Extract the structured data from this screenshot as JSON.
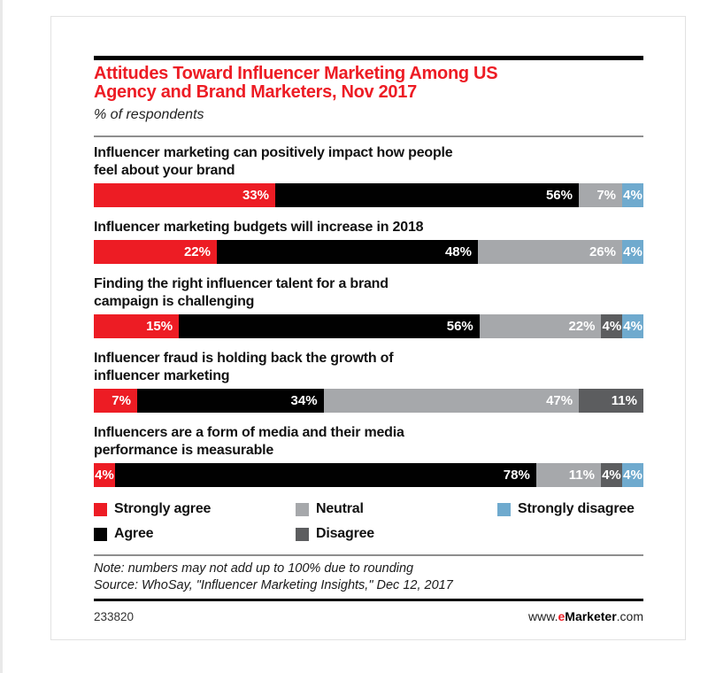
{
  "chart_data": {
    "type": "bar",
    "orientation": "horizontal-stacked",
    "title": "Attitudes Toward Influencer Marketing Among US Agency and Brand Marketers, Nov 2017",
    "title_lines": [
      "Attitudes Toward Influencer Marketing Among US",
      "Agency and Brand Marketers, Nov 2017"
    ],
    "subtitle": "% of respondents",
    "unit": "%",
    "xlim": [
      0,
      100
    ],
    "grid": false,
    "legend_position": "bottom",
    "categories": [
      "Influencer marketing can positively impact how people feel about your brand",
      "Influencer marketing budgets will increase in 2018",
      "Finding the right influencer talent for a brand campaign is challenging",
      "Influencer fraud is holding back the growth of influencer marketing",
      "Influencers are a form of media and their media performance is measurable"
    ],
    "category_lines": [
      [
        "Influencer marketing can positively impact how people",
        "feel about your brand"
      ],
      [
        "Influencer marketing budgets will increase in 2018"
      ],
      [
        "Finding the right influencer talent for a brand",
        "campaign is challenging"
      ],
      [
        "Influencer fraud is holding back the growth of",
        "influencer marketing"
      ],
      [
        "Influencers are a form of media and their media",
        "performance is measurable"
      ]
    ],
    "series": [
      {
        "name": "Strongly agree",
        "color": "#ED1C24",
        "values": [
          33,
          22,
          15,
          7,
          4
        ]
      },
      {
        "name": "Agree",
        "color": "#010101",
        "values": [
          56,
          48,
          56,
          34,
          78
        ]
      },
      {
        "name": "Neutral",
        "color": "#A6A8AB",
        "values": [
          7,
          26,
          22,
          47,
          11
        ]
      },
      {
        "name": "Disagree",
        "color": "#5C5D5F",
        "values": [
          0,
          0,
          4,
          11,
          4
        ]
      },
      {
        "name": "Strongly disagree",
        "color": "#6FAACE",
        "values": [
          4,
          4,
          4,
          0,
          4
        ]
      }
    ]
  },
  "legend": {
    "items": [
      {
        "label": "Strongly agree",
        "color": "#ED1C24"
      },
      {
        "label": "Agree",
        "color": "#010101"
      },
      {
        "label": "Neutral",
        "color": "#A6A8AB"
      },
      {
        "label": "Disagree",
        "color": "#5C5D5F"
      },
      {
        "label": "Strongly disagree",
        "color": "#6FAACE"
      }
    ]
  },
  "note": "Note: numbers may not add up to 100% due to rounding",
  "source": "Source: WhoSay, \"Influencer Marketing Insights,\" Dec 12, 2017",
  "footer": {
    "chart_id": "233820",
    "url_prefix": "www.",
    "url_e": "e",
    "url_brand": "Marketer",
    "url_suffix": ".com"
  }
}
